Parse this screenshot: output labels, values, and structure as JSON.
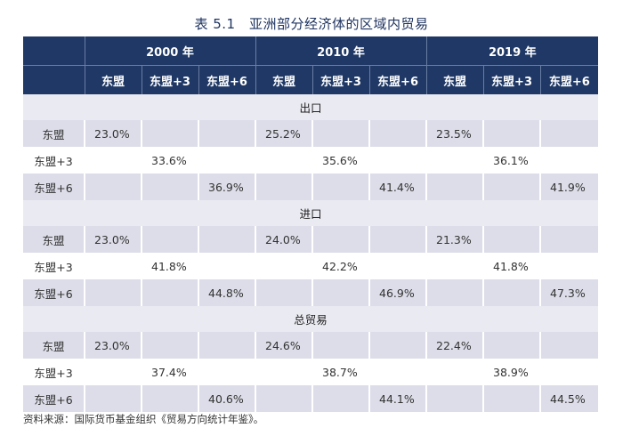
{
  "title": "表 5.1　亚洲部分经济体的区域内贸易",
  "years": [
    "2000 年",
    "2010 年",
    "2019 年"
  ],
  "subcolumns": [
    "东盟",
    "东盟+3",
    "东盟+6",
    "东盟",
    "东盟+3",
    "东盟+6",
    "东盟",
    "东盟+3",
    "东盟+6"
  ],
  "sections": [
    {
      "name": "出口",
      "rows": [
        {
          "label": "东盟",
          "values": [
            "23.0%",
            "",
            "",
            "25.2%",
            "",
            "",
            "23.5%",
            "",
            ""
          ]
        },
        {
          "label": "东盟+3",
          "values": [
            "",
            "33.6%",
            "",
            "",
            "35.6%",
            "",
            "",
            "36.1%",
            ""
          ]
        },
        {
          "label": "东盟+6",
          "values": [
            "",
            "",
            "36.9%",
            "",
            "",
            "41.4%",
            "",
            "",
            "41.9%"
          ]
        }
      ]
    },
    {
      "name": "进口",
      "rows": [
        {
          "label": "东盟",
          "values": [
            "23.0%",
            "",
            "",
            "24.0%",
            "",
            "",
            "21.3%",
            "",
            ""
          ]
        },
        {
          "label": "东盟+3",
          "values": [
            "",
            "41.8%",
            "",
            "",
            "42.2%",
            "",
            "",
            "41.8%",
            ""
          ]
        },
        {
          "label": "东盟+6",
          "values": [
            "",
            "",
            "44.8%",
            "",
            "",
            "46.9%",
            "",
            "",
            "47.3%"
          ]
        }
      ]
    },
    {
      "name": "总贸易",
      "rows": [
        {
          "label": "东盟",
          "values": [
            "23.0%",
            "",
            "",
            "24.6%",
            "",
            "",
            "22.4%",
            "",
            ""
          ]
        },
        {
          "label": "东盟+3",
          "values": [
            "",
            "37.4%",
            "",
            "",
            "38.7%",
            "",
            "",
            "38.9%",
            ""
          ]
        },
        {
          "label": "东盟+6",
          "values": [
            "",
            "",
            "40.6%",
            "",
            "",
            "44.1%",
            "",
            "",
            "44.5%"
          ]
        }
      ]
    }
  ],
  "source": "资料来源：国际货币基金组织《贸易方向统计年鉴》。"
}
